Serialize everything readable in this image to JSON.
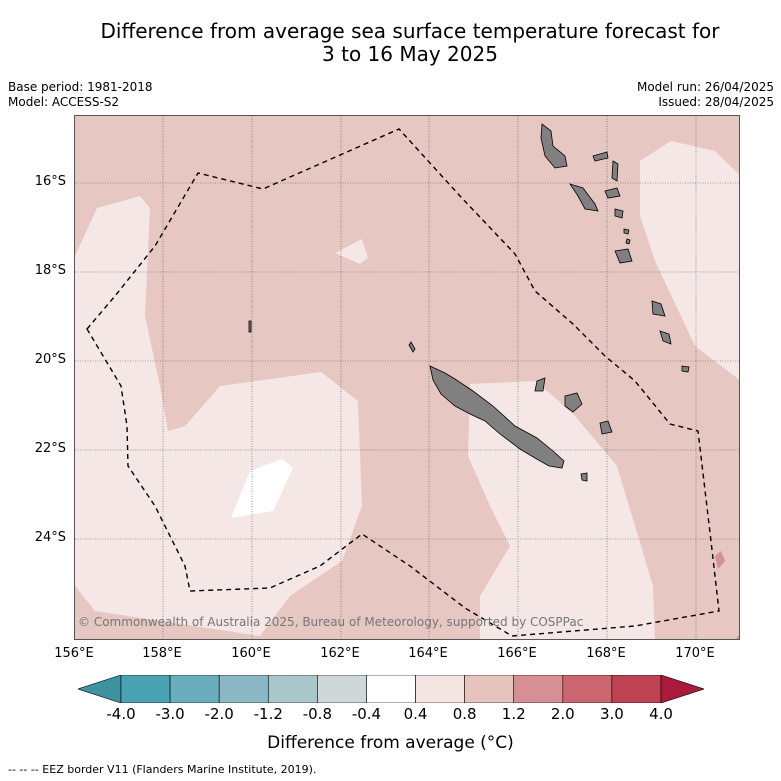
{
  "title": {
    "line1": "Difference from average sea surface temperature forecast for",
    "line2": "3 to 16 May 2025"
  },
  "meta": {
    "base_period": "Base period: 1981-2018",
    "model": "Model: ACCESS-S2",
    "model_run": "Model run: 26/04/2025",
    "issued": "Issued: 28/04/2025"
  },
  "map": {
    "longitude_labels": [
      "156°E",
      "158°E",
      "160°E",
      "162°E",
      "164°E",
      "166°E",
      "168°E",
      "170°E"
    ],
    "latitude_labels": [
      "16°S",
      "18°S",
      "20°S",
      "22°S",
      "24°S"
    ],
    "extent": {
      "lon_min": 156,
      "lon_max": 171,
      "lat_min": -26.2,
      "lat_max": -14.4
    },
    "copyright": "© Commonwealth of Australia 2025, Bureau of Meteorology, supported by COSPPac",
    "land_color": "#808080",
    "eez_label": "EEZ border"
  },
  "colorbar": {
    "tick_labels": [
      "-4.0",
      "-3.0",
      "-2.0",
      "-1.2",
      "-0.8",
      "-0.4",
      "0.4",
      "0.8",
      "1.2",
      "2.0",
      "3.0",
      "4.0"
    ],
    "colors": [
      "#3e93a3",
      "#4aa3b2",
      "#6aaebd",
      "#8bb8c4",
      "#a9c6cb",
      "#ced8da",
      "#ffffff",
      "#f4e5e3",
      "#e6c3bd",
      "#d69095",
      "#ca6670",
      "#be4352",
      "#aa1a3a"
    ],
    "title": "Difference from average (°C)"
  },
  "legend": {
    "footer": "--  --  -- EEZ border V11 (Flanders Marine Institute, 2019)."
  }
}
